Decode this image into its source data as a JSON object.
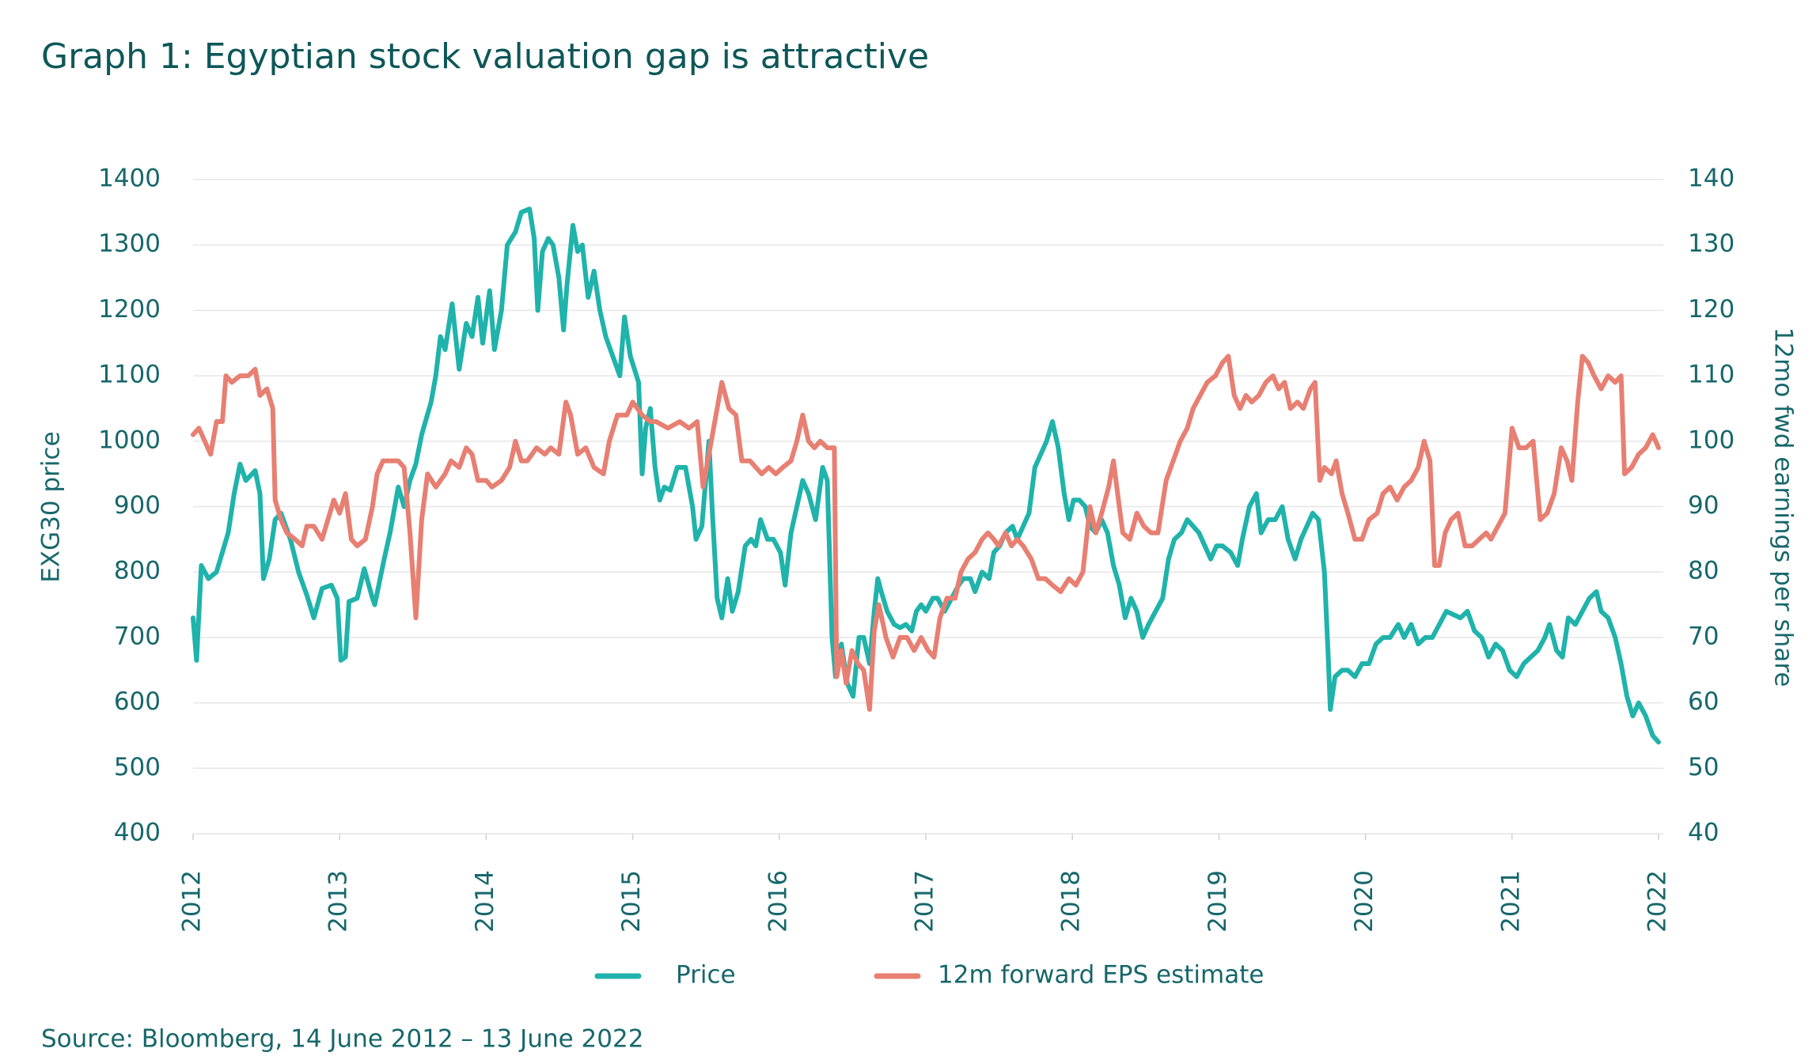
{
  "chart_data": {
    "type": "line",
    "title": "Graph 1: Egyptian stock valuation gap is attractive",
    "ylabel": "EXG30 price",
    "y2label": "12mo fwd earnings per share",
    "source": "Source: Bloomberg, 14 June 2012 – 13 June 2022",
    "xlim": [
      2012,
      2022
    ],
    "xticks": [
      2012,
      2013,
      2014,
      2015,
      2016,
      2017,
      2018,
      2019,
      2020,
      2021,
      2022
    ],
    "ylim": [
      400,
      1400
    ],
    "yticks": [
      400,
      500,
      600,
      700,
      800,
      900,
      1000,
      1100,
      1200,
      1300,
      1400
    ],
    "y2lim": [
      40,
      140
    ],
    "y2ticks": [
      40,
      50,
      60,
      70,
      80,
      90,
      100,
      110,
      120,
      130,
      140
    ],
    "grid": true,
    "legend": "bottom",
    "series": [
      {
        "name": "Price",
        "color": "#1fb3ab",
        "axis": "y",
        "x": [
          2012,
          2012.024,
          2012.056,
          2012.104,
          2012.16,
          2012.2,
          2012.24,
          2012.28,
          2012.32,
          2012.36,
          2012.424,
          2012.456,
          2012.48,
          2012.52,
          2012.56,
          2012.6,
          2012.664,
          2012.72,
          2012.776,
          2012.824,
          2012.88,
          2012.944,
          2012.984,
          2013.008,
          2013.04,
          2013.064,
          2013.12,
          2013.168,
          2013.224,
          2013.24,
          2013.304,
          2013.344,
          2013.4,
          2013.44,
          2013.48,
          2013.52,
          2013.56,
          2013.624,
          2013.656,
          2013.688,
          2013.72,
          2013.768,
          2013.816,
          2013.864,
          2013.904,
          2013.944,
          2013.976,
          2014.024,
          2014.056,
          2014.104,
          2014.144,
          2014.2,
          2014.24,
          2014.296,
          2014.328,
          2014.352,
          2014.384,
          2014.424,
          2014.456,
          2014.496,
          2014.528,
          2014.552,
          2014.592,
          2014.624,
          2014.656,
          2014.696,
          2014.736,
          2014.776,
          2014.816,
          2014.848,
          2014.912,
          2014.944,
          2014.984,
          2015.04,
          2015.064,
          2015.088,
          2015.12,
          2015.152,
          2015.184,
          2015.216,
          2015.256,
          2015.304,
          2015.36,
          2015.408,
          2015.432,
          2015.472,
          2015.52,
          2015.544,
          2015.576,
          2015.608,
          2015.648,
          2015.68,
          2015.72,
          2015.768,
          2015.808,
          2015.84,
          2015.872,
          2015.92,
          2015.96,
          2016.008,
          2016.04,
          2016.08,
          2016.12,
          2016.16,
          2016.2,
          2016.248,
          2016.296,
          2016.328,
          2016.36,
          2016.384,
          2016.424,
          2016.464,
          2016.504,
          2016.544,
          2016.576,
          2016.616,
          2016.648,
          2016.672,
          2016.696,
          2016.736,
          2016.784,
          2016.824,
          2016.864,
          2016.904,
          2016.936,
          2016.968,
          2017,
          2017.048,
          2017.08,
          2017.128,
          2017.176,
          2017.224,
          2017.256,
          2017.304,
          2017.336,
          2017.384,
          2017.432,
          2017.464,
          2017.504,
          2017.544,
          2017.592,
          2017.624,
          2017.664,
          2017.704,
          2017.744,
          2017.784,
          2017.824,
          2017.864,
          2017.904,
          2017.944,
          2017.976,
          2018.008,
          2018.048,
          2018.088,
          2018.12,
          2018.16,
          2018.2,
          2018.24,
          2018.28,
          2018.32,
          2018.36,
          2018.4,
          2018.44,
          2018.48,
          2018.52,
          2018.568,
          2018.616,
          2018.656,
          2018.696,
          2018.744,
          2018.784,
          2018.824,
          2018.864,
          2018.904,
          2018.944,
          2018.984,
          2019.024,
          2019.08,
          2019.128,
          2019.16,
          2019.208,
          2019.256,
          2019.288,
          2019.336,
          2019.384,
          2019.432,
          2019.472,
          2019.52,
          2019.56,
          2019.6,
          2019.64,
          2019.68,
          2019.72,
          2019.744,
          2019.76,
          2019.792,
          2019.84,
          2019.88,
          2019.928,
          2019.976,
          2020.024,
          2020.072,
          2020.12,
          2020.168,
          2020.224,
          2020.264,
          2020.312,
          2020.36,
          2020.408,
          2020.456,
          2020.504,
          2020.552,
          2020.6,
          2020.648,
          2020.696,
          2020.744,
          2020.792,
          2020.84,
          2020.888,
          2020.936,
          2020.984,
          2021.032,
          2021.08,
          2021.128,
          2021.176,
          2021.224,
          2021.256,
          2021.304,
          2021.344,
          2021.384,
          2021.432,
          2021.48,
          2021.528,
          2021.576,
          2021.608,
          2021.656,
          2021.704,
          2021.744,
          2021.784,
          2021.824,
          2021.864,
          2021.912,
          2021.96,
          2022
        ],
        "values": [
          730,
          665,
          810,
          790,
          800,
          830,
          860,
          920,
          965,
          940,
          955,
          920,
          790,
          820,
          880,
          890,
          850,
          800,
          765,
          730,
          775,
          780,
          760,
          665,
          670,
          755,
          760,
          805,
          760,
          750,
          820,
          860,
          930,
          900,
          940,
          965,
          1010,
          1060,
          1100,
          1160,
          1140,
          1210,
          1110,
          1180,
          1160,
          1220,
          1150,
          1230,
          1140,
          1200,
          1300,
          1320,
          1350,
          1355,
          1310,
          1200,
          1290,
          1310,
          1300,
          1250,
          1170,
          1240,
          1330,
          1290,
          1300,
          1220,
          1260,
          1200,
          1160,
          1140,
          1100,
          1190,
          1130,
          1090,
          950,
          1020,
          1050,
          960,
          910,
          930,
          925,
          960,
          960,
          900,
          850,
          870,
          1000,
          890,
          760,
          730,
          790,
          740,
          770,
          840,
          850,
          840,
          880,
          850,
          850,
          830,
          780,
          860,
          900,
          940,
          920,
          880,
          960,
          940,
          700,
          640,
          690,
          630,
          610,
          700,
          700,
          660,
          740,
          790,
          770,
          740,
          720,
          715,
          720,
          710,
          740,
          750,
          740,
          760,
          760,
          740,
          760,
          780,
          790,
          790,
          770,
          800,
          790,
          830,
          840,
          860,
          870,
          850,
          870,
          890,
          960,
          980,
          1000,
          1030,
          990,
          920,
          880,
          910,
          910,
          900,
          870,
          860,
          880,
          860,
          810,
          780,
          730,
          760,
          740,
          700,
          720,
          740,
          760,
          820,
          850,
          860,
          880,
          870,
          860,
          840,
          820,
          840,
          840,
          830,
          810,
          850,
          900,
          920,
          860,
          880,
          880,
          900,
          850,
          820,
          850,
          870,
          890,
          880,
          800,
          680,
          590,
          640,
          650,
          650,
          640,
          660,
          660,
          690,
          700,
          700,
          720,
          700,
          720,
          690,
          700,
          700,
          720,
          740,
          735,
          730,
          740,
          710,
          700,
          670,
          690,
          680,
          650,
          640,
          660,
          670,
          680,
          700,
          720,
          680,
          670,
          730,
          720,
          740,
          760,
          770,
          740,
          730,
          700,
          660,
          610,
          580,
          600,
          580,
          550,
          540
        ]
      },
      {
        "name": "12m forward EPS estimate",
        "color": "#e77f72",
        "axis": "y2",
        "x": [
          2012,
          2012.04,
          2012.08,
          2012.12,
          2012.16,
          2012.2,
          2012.224,
          2012.264,
          2012.32,
          2012.376,
          2012.424,
          2012.456,
          2012.504,
          2012.544,
          2012.56,
          2012.6,
          2012.64,
          2012.696,
          2012.744,
          2012.776,
          2012.824,
          2012.88,
          2012.92,
          2012.96,
          2013,
          2013.04,
          2013.08,
          2013.12,
          2013.176,
          2013.224,
          2013.256,
          2013.296,
          2013.344,
          2013.4,
          2013.44,
          2013.48,
          2013.52,
          2013.56,
          2013.6,
          2013.656,
          2013.72,
          2013.76,
          2013.816,
          2013.864,
          2013.904,
          2013.944,
          2014,
          2014.04,
          2014.104,
          2014.16,
          2014.2,
          2014.24,
          2014.28,
          2014.344,
          2014.4,
          2014.44,
          2014.496,
          2014.544,
          2014.576,
          2014.624,
          2014.68,
          2014.736,
          2014.8,
          2014.84,
          2014.896,
          2014.96,
          2015,
          2015.064,
          2015.12,
          2015.16,
          2015.24,
          2015.32,
          2015.384,
          2015.44,
          2015.48,
          2015.52,
          2015.56,
          2015.608,
          2015.656,
          2015.704,
          2015.744,
          2015.8,
          2015.84,
          2015.88,
          2015.928,
          2015.976,
          2016.024,
          2016.08,
          2016.12,
          2016.16,
          2016.2,
          2016.24,
          2016.28,
          2016.328,
          2016.376,
          2016.392,
          2016.424,
          2016.456,
          2016.496,
          2016.536,
          2016.576,
          2016.616,
          2016.648,
          2016.68,
          2016.728,
          2016.776,
          2016.824,
          2016.872,
          2016.92,
          2016.968,
          2017.016,
          2017.056,
          2017.096,
          2017.144,
          2017.2,
          2017.24,
          2017.288,
          2017.336,
          2017.384,
          2017.424,
          2017.464,
          2017.496,
          2017.544,
          2017.584,
          2017.624,
          2017.664,
          2017.72,
          2017.768,
          2017.816,
          2017.864,
          2017.92,
          2017.976,
          2018.024,
          2018.072,
          2018.12,
          2018.16,
          2018.2,
          2018.248,
          2018.28,
          2018.32,
          2018.344,
          2018.392,
          2018.44,
          2018.488,
          2018.536,
          2018.584,
          2018.64,
          2018.688,
          2018.736,
          2018.784,
          2018.824,
          2018.872,
          2018.92,
          2018.976,
          2019.024,
          2019.064,
          2019.104,
          2019.144,
          2019.184,
          2019.224,
          2019.272,
          2019.32,
          2019.368,
          2019.408,
          2019.448,
          2019.488,
          2019.536,
          2019.576,
          2019.624,
          2019.656,
          2019.688,
          2019.72,
          2019.768,
          2019.8,
          2019.84,
          2019.88,
          2019.928,
          2019.976,
          2020.024,
          2020.08,
          2020.12,
          2020.168,
          2020.216,
          2020.264,
          2020.312,
          2020.36,
          2020.4,
          2020.44,
          2020.472,
          2020.504,
          2020.544,
          2020.584,
          2020.632,
          2020.68,
          2020.728,
          2020.776,
          2020.824,
          2020.856,
          2020.904,
          2020.952,
          2021,
          2021.048,
          2021.096,
          2021.144,
          2021.192,
          2021.24,
          2021.288,
          2021.336,
          2021.376,
          2021.408,
          2021.448,
          2021.48,
          2021.52,
          2021.56,
          2021.608,
          2021.656,
          2021.704,
          2021.744,
          2021.768,
          2021.816,
          2021.864,
          2021.912,
          2021.96,
          2022
        ],
        "values": [
          101,
          102,
          100,
          98,
          103,
          103,
          110,
          109,
          110,
          110,
          111,
          107,
          108,
          105,
          91,
          88,
          86,
          85,
          84,
          87,
          87,
          85,
          88,
          91,
          89,
          92,
          85,
          84,
          85,
          90,
          95,
          97,
          97,
          97,
          96,
          86,
          73,
          88,
          95,
          93,
          95,
          97,
          96,
          99,
          98,
          94,
          94,
          93,
          94,
          96,
          100,
          97,
          97,
          99,
          98,
          99,
          98,
          106,
          104,
          98,
          99,
          96,
          95,
          100,
          104,
          104,
          106,
          104,
          103,
          103,
          102,
          103,
          102,
          103,
          93,
          98,
          103,
          109,
          105,
          104,
          97,
          97,
          96,
          95,
          96,
          95,
          96,
          97,
          100,
          104,
          100,
          99,
          100,
          99,
          99,
          64,
          68,
          63,
          68,
          66,
          65,
          59,
          71,
          75,
          70,
          67,
          70,
          70,
          68,
          70,
          68,
          67,
          73,
          76,
          76,
          80,
          82,
          83,
          85,
          86,
          85,
          84,
          86,
          84,
          85,
          84,
          82,
          79,
          79,
          78,
          77,
          79,
          78,
          80,
          90,
          86,
          89,
          93,
          97,
          90,
          86,
          85,
          89,
          87,
          86,
          86,
          94,
          97,
          100,
          102,
          105,
          107,
          109,
          110,
          112,
          113,
          107,
          105,
          107,
          106,
          107,
          109,
          110,
          108,
          109,
          105,
          106,
          105,
          108,
          109,
          94,
          96,
          95,
          97,
          92,
          89,
          85,
          85,
          88,
          89,
          92,
          93,
          91,
          93,
          94,
          96,
          100,
          97,
          81,
          81,
          86,
          88,
          89,
          84,
          84,
          85,
          86,
          85,
          87,
          89,
          102,
          99,
          99,
          100,
          88,
          89,
          92,
          99,
          97,
          94,
          106,
          113,
          112,
          110,
          108,
          110,
          109,
          110,
          95,
          96,
          98,
          99,
          101,
          99
        ]
      }
    ]
  }
}
